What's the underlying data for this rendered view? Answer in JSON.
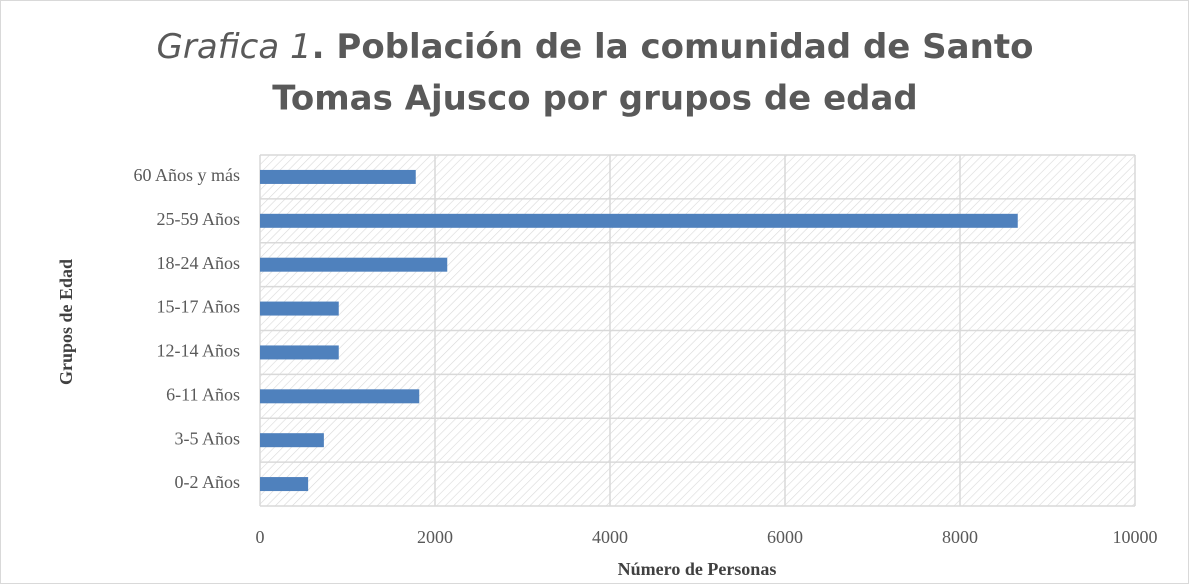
{
  "chart_data": {
    "type": "barh",
    "title": [
      "Grafica 1",
      ". Población de la comunidad de Santo",
      "Tomas Ajusco por grupos de edad"
    ],
    "x_label": "Número de Personas",
    "y_label": "Grupos de Edad",
    "categories": [
      "0-2 Años",
      "3-5 Años",
      "6-11 Años",
      "12-14 Años",
      "15-17 Años",
      "18-24 Años",
      "25-59 Años",
      "60 Años y más"
    ],
    "values": [
      550,
      730,
      1820,
      900,
      900,
      2140,
      8660,
      1780
    ],
    "color": "#4f81bd",
    "xlim": [
      0,
      10000
    ],
    "xticks": [
      0,
      2000,
      4000,
      6000,
      8000,
      10000
    ],
    "grid": true
  }
}
